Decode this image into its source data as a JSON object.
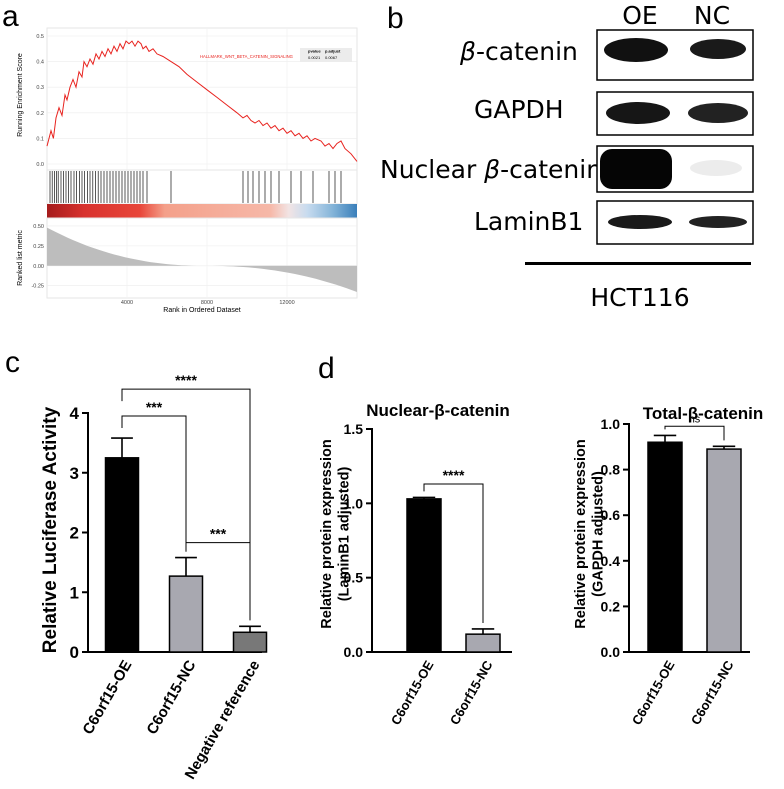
{
  "panels": {
    "a": "a",
    "b": "b",
    "c": "c",
    "d": "d"
  },
  "chart_data": [
    {
      "id": "a",
      "type": "line",
      "title": "",
      "ylabel": "Running Enrichment Score",
      "ylabel_bottom": "Ranked list metric",
      "xlabel": "Rank in Ordered Dataset",
      "xlim": [
        0,
        15500
      ],
      "ylim": [
        0,
        0.5
      ],
      "yticks": [
        "0.0",
        "0.1",
        "0.2",
        "0.3",
        "0.4",
        "0.5"
      ],
      "xticks": [
        "4000",
        "8000",
        "12000"
      ],
      "xtick_values": [
        4000,
        8000,
        12000
      ],
      "metric_yticks": [
        "0.50",
        "0.25",
        "0.00",
        "-0.25"
      ],
      "metric_ytick_values": [
        0.5,
        0.25,
        0.0,
        -0.25
      ],
      "metric_ylim": [
        -0.38,
        0.55
      ],
      "series_label": "HALLMARK_WNT_BETA_CATENIN_SIGNALING",
      "series_color": "#e8231f",
      "table": {
        "headers": [
          "pvalue",
          "p.adjust"
        ],
        "row": [
          "0.0021",
          "0.0067"
        ]
      },
      "es_points": [
        [
          0,
          0.07
        ],
        [
          200,
          0.13
        ],
        [
          320,
          0.1
        ],
        [
          450,
          0.18
        ],
        [
          600,
          0.22
        ],
        [
          750,
          0.19
        ],
        [
          900,
          0.27
        ],
        [
          1000,
          0.25
        ],
        [
          1150,
          0.3
        ],
        [
          1300,
          0.33
        ],
        [
          1450,
          0.3
        ],
        [
          1600,
          0.36
        ],
        [
          1750,
          0.34
        ],
        [
          1850,
          0.4
        ],
        [
          2000,
          0.38
        ],
        [
          2150,
          0.41
        ],
        [
          2300,
          0.39
        ],
        [
          2450,
          0.43
        ],
        [
          2600,
          0.41
        ],
        [
          2750,
          0.44
        ],
        [
          2900,
          0.42
        ],
        [
          3050,
          0.45
        ],
        [
          3200,
          0.43
        ],
        [
          3350,
          0.46
        ],
        [
          3500,
          0.44
        ],
        [
          3650,
          0.47
        ],
        [
          3800,
          0.45
        ],
        [
          3950,
          0.48
        ],
        [
          4100,
          0.47
        ],
        [
          4250,
          0.48
        ],
        [
          4400,
          0.46
        ],
        [
          4550,
          0.48
        ],
        [
          4700,
          0.47
        ],
        [
          4800,
          0.45
        ],
        [
          4950,
          0.46
        ],
        [
          5100,
          0.44
        ],
        [
          5300,
          0.45
        ],
        [
          5500,
          0.43
        ],
        [
          5800,
          0.42
        ],
        [
          6200,
          0.4
        ],
        [
          6600,
          0.38
        ],
        [
          7000,
          0.35
        ],
        [
          7500,
          0.32
        ],
        [
          8000,
          0.29
        ],
        [
          8500,
          0.26
        ],
        [
          9000,
          0.23
        ],
        [
          9500,
          0.2
        ],
        [
          9800,
          0.18
        ],
        [
          10000,
          0.19
        ],
        [
          10200,
          0.17
        ],
        [
          10400,
          0.16
        ],
        [
          10600,
          0.17
        ],
        [
          10800,
          0.15
        ],
        [
          11000,
          0.16
        ],
        [
          11200,
          0.14
        ],
        [
          11400,
          0.15
        ],
        [
          11600,
          0.13
        ],
        [
          11800,
          0.14
        ],
        [
          12000,
          0.12
        ],
        [
          12200,
          0.13
        ],
        [
          12400,
          0.11
        ],
        [
          12600,
          0.12
        ],
        [
          12800,
          0.1
        ],
        [
          13000,
          0.11
        ],
        [
          13200,
          0.09
        ],
        [
          13400,
          0.1
        ],
        [
          13700,
          0.09
        ],
        [
          13900,
          0.07
        ],
        [
          14100,
          0.08
        ],
        [
          14300,
          0.06
        ],
        [
          14500,
          0.08
        ],
        [
          14700,
          0.09
        ],
        [
          14900,
          0.06
        ],
        [
          15200,
          0.04
        ],
        [
          15500,
          0.01
        ]
      ],
      "hits": [
        150,
        260,
        380,
        470,
        560,
        700,
        820,
        950,
        1080,
        1200,
        1350,
        1480,
        1620,
        1750,
        1880,
        2020,
        2150,
        2290,
        2420,
        2560,
        2700,
        2850,
        3000,
        3150,
        3300,
        3450,
        3600,
        3750,
        3900,
        4050,
        4200,
        4350,
        4500,
        4650,
        4800,
        5000,
        6200,
        9800,
        10050,
        10300,
        10600,
        10900,
        11200,
        11600,
        12200,
        12700,
        13300,
        14100,
        14400,
        14700
      ]
    },
    {
      "id": "b",
      "type": "table",
      "columns": [
        "OE",
        "NC"
      ],
      "rows": [
        "β-catenin",
        "GAPDH",
        "Nuclear β-catenin",
        "LaminB1"
      ],
      "row_parts": [
        [
          "β",
          "-catenin"
        ],
        [
          "",
          "GAPDH"
        ],
        [
          "Nuclear ",
          "β",
          "-catenin"
        ],
        [
          "",
          "LaminB1"
        ]
      ],
      "cell_line": "HCT116"
    },
    {
      "id": "c",
      "type": "bar",
      "categories": [
        "C6orf15-OE",
        "C6orf15-NC",
        "Negative reference"
      ],
      "values": [
        3.25,
        1.27,
        0.33
      ],
      "errors": [
        0.33,
        0.31,
        0.1
      ],
      "colors": [
        "#000000",
        "#a8a8b0",
        "#787878"
      ],
      "ylabel": "Relative Luciferase Activity",
      "ylim": [
        0,
        4
      ],
      "yticks": [
        "0",
        "1",
        "2",
        "3",
        "4"
      ],
      "ytick_values": [
        0,
        1,
        2,
        3,
        4
      ],
      "significance": [
        {
          "from": 0,
          "to": 1,
          "label": "***",
          "level": 3.95
        },
        {
          "from": 0,
          "to": 2,
          "label": "****",
          "level": 4.4
        },
        {
          "from": 1,
          "to": 2,
          "label": "***",
          "level": 1.83
        }
      ]
    },
    {
      "id": "d1",
      "type": "bar",
      "title": "Nuclear-β-catenin",
      "categories": [
        "C6orf15-OE",
        "C6orf15-NC"
      ],
      "values": [
        1.03,
        0.12
      ],
      "errors": [
        0.01,
        0.035
      ],
      "colors": [
        "#000000",
        "#a8a8b0"
      ],
      "ylabel": "Relative protein expression",
      "ylabel2": "(LaminB1 adjusted)",
      "ylim": [
        0,
        1.5
      ],
      "yticks": [
        "0.0",
        "0.5",
        "1.0",
        "1.5"
      ],
      "ytick_values": [
        0,
        0.5,
        1.0,
        1.5
      ],
      "significance": [
        {
          "from": 0,
          "to": 1,
          "label": "****",
          "level": 1.13
        }
      ]
    },
    {
      "id": "d2",
      "type": "bar",
      "title": "Total-β-catenin",
      "categories": [
        "C6orf15-OE",
        "C6orf15-NC"
      ],
      "values": [
        0.92,
        0.89
      ],
      "errors": [
        0.03,
        0.012
      ],
      "colors": [
        "#000000",
        "#a8a8b0"
      ],
      "ylabel": "Relative protein expression",
      "ylabel2": "(GAPDH adjusted)",
      "ylim": [
        0,
        1.0
      ],
      "yticks": [
        "0.0",
        "0.2",
        "0.4",
        "0.6",
        "0.8",
        "1.0"
      ],
      "ytick_values": [
        0,
        0.2,
        0.4,
        0.6,
        0.8,
        1.0
      ],
      "significance": [
        {
          "from": 0,
          "to": 1,
          "label": "ns",
          "level": 0.99
        }
      ]
    }
  ]
}
